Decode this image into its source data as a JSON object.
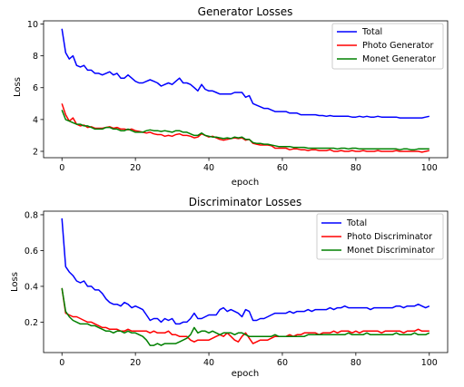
{
  "chart_data": [
    {
      "type": "line",
      "title": "Generator Losses",
      "xlabel": "epoch",
      "ylabel": "Loss",
      "xlim": [
        -5,
        105
      ],
      "ylim": [
        1.6,
        10.2
      ],
      "xticks": [
        0,
        20,
        40,
        60,
        80,
        100
      ],
      "yticks": [
        2,
        4,
        6,
        8,
        10
      ],
      "grid": false,
      "legend": "upper right",
      "series": [
        {
          "name": "Total",
          "color": "#0000ff",
          "values": [
            9.7,
            8.2,
            7.8,
            8.0,
            7.4,
            7.3,
            7.4,
            7.1,
            7.1,
            6.9,
            6.9,
            6.8,
            6.9,
            7.0,
            6.8,
            6.9,
            6.6,
            6.6,
            6.8,
            6.6,
            6.4,
            6.3,
            6.3,
            6.4,
            6.5,
            6.4,
            6.3,
            6.1,
            6.2,
            6.3,
            6.2,
            6.4,
            6.6,
            6.3,
            6.3,
            6.2,
            6.0,
            5.8,
            6.2,
            5.9,
            5.8,
            5.8,
            5.7,
            5.6,
            5.6,
            5.6,
            5.6,
            5.7,
            5.7,
            5.7,
            5.4,
            5.5,
            5.0,
            4.9,
            4.8,
            4.7,
            4.7,
            4.6,
            4.5,
            4.5,
            4.5,
            4.5,
            4.4,
            4.4,
            4.4,
            4.3,
            4.3,
            4.3,
            4.3,
            4.3,
            4.25,
            4.25,
            4.2,
            4.25,
            4.2,
            4.2,
            4.2,
            4.2,
            4.2,
            4.15,
            4.15,
            4.2,
            4.15,
            4.2,
            4.15,
            4.15,
            4.2,
            4.15,
            4.15,
            4.15,
            4.15,
            4.15,
            4.1,
            4.1,
            4.1,
            4.1,
            4.1,
            4.1,
            4.1,
            4.15,
            4.2
          ]
        },
        {
          "name": "Photo Generator",
          "color": "#ff0000",
          "values": [
            5.0,
            4.3,
            3.9,
            4.1,
            3.7,
            3.6,
            3.65,
            3.5,
            3.55,
            3.45,
            3.45,
            3.45,
            3.5,
            3.55,
            3.45,
            3.5,
            3.4,
            3.4,
            3.35,
            3.4,
            3.3,
            3.25,
            3.2,
            3.15,
            3.2,
            3.1,
            3.05,
            3.05,
            2.95,
            3.0,
            2.95,
            3.05,
            3.1,
            3.0,
            3.0,
            2.95,
            2.85,
            2.9,
            3.1,
            3.0,
            2.9,
            2.95,
            2.85,
            2.75,
            2.7,
            2.75,
            2.8,
            2.85,
            2.8,
            2.85,
            2.7,
            2.75,
            2.5,
            2.45,
            2.4,
            2.4,
            2.4,
            2.35,
            2.2,
            2.2,
            2.2,
            2.2,
            2.1,
            2.15,
            2.15,
            2.1,
            2.1,
            2.05,
            2.1,
            2.1,
            2.05,
            2.05,
            2.05,
            2.1,
            2.0,
            2.0,
            2.05,
            2.0,
            2.0,
            2.05,
            2.0,
            2.0,
            2.05,
            2.0,
            2.0,
            2.0,
            2.05,
            2.0,
            2.0,
            2.0,
            2.0,
            2.05,
            2.0,
            2.0,
            2.0,
            2.0,
            2.0,
            2.0,
            1.95,
            2.0,
            2.05
          ]
        },
        {
          "name": "Monet Generator",
          "color": "#008000",
          "values": [
            4.6,
            4.0,
            3.9,
            3.8,
            3.7,
            3.7,
            3.6,
            3.6,
            3.5,
            3.4,
            3.4,
            3.4,
            3.5,
            3.5,
            3.4,
            3.4,
            3.3,
            3.3,
            3.4,
            3.3,
            3.2,
            3.2,
            3.2,
            3.3,
            3.35,
            3.3,
            3.3,
            3.25,
            3.3,
            3.25,
            3.2,
            3.3,
            3.3,
            3.2,
            3.2,
            3.1,
            3.0,
            3.0,
            3.15,
            3.0,
            2.95,
            2.9,
            2.9,
            2.85,
            2.8,
            2.85,
            2.8,
            2.9,
            2.85,
            2.9,
            2.75,
            2.75,
            2.55,
            2.5,
            2.5,
            2.45,
            2.45,
            2.4,
            2.35,
            2.3,
            2.3,
            2.3,
            2.3,
            2.25,
            2.25,
            2.25,
            2.25,
            2.2,
            2.2,
            2.2,
            2.2,
            2.2,
            2.2,
            2.2,
            2.2,
            2.15,
            2.2,
            2.2,
            2.15,
            2.2,
            2.2,
            2.15,
            2.15,
            2.15,
            2.15,
            2.15,
            2.15,
            2.15,
            2.15,
            2.15,
            2.15,
            2.15,
            2.1,
            2.15,
            2.15,
            2.1,
            2.1,
            2.15,
            2.15,
            2.15,
            2.15
          ]
        }
      ]
    },
    {
      "type": "line",
      "title": "Discriminator Losses",
      "xlabel": "epoch",
      "ylabel": "Loss",
      "xlim": [
        -5,
        105
      ],
      "ylim": [
        0.03,
        0.82
      ],
      "xticks": [
        0,
        20,
        40,
        60,
        80,
        100
      ],
      "yticks": [
        0.2,
        0.4,
        0.6,
        0.8
      ],
      "grid": false,
      "legend": "upper right",
      "series": [
        {
          "name": "Total",
          "color": "#0000ff",
          "values": [
            0.78,
            0.51,
            0.48,
            0.46,
            0.43,
            0.42,
            0.43,
            0.4,
            0.4,
            0.38,
            0.38,
            0.36,
            0.33,
            0.31,
            0.3,
            0.3,
            0.29,
            0.31,
            0.3,
            0.28,
            0.29,
            0.28,
            0.27,
            0.24,
            0.21,
            0.22,
            0.22,
            0.2,
            0.22,
            0.21,
            0.22,
            0.19,
            0.19,
            0.2,
            0.2,
            0.22,
            0.25,
            0.22,
            0.22,
            0.23,
            0.24,
            0.24,
            0.24,
            0.27,
            0.28,
            0.26,
            0.27,
            0.26,
            0.25,
            0.23,
            0.27,
            0.26,
            0.21,
            0.21,
            0.22,
            0.22,
            0.23,
            0.24,
            0.25,
            0.25,
            0.25,
            0.25,
            0.26,
            0.25,
            0.26,
            0.26,
            0.26,
            0.27,
            0.26,
            0.27,
            0.27,
            0.27,
            0.27,
            0.28,
            0.27,
            0.28,
            0.28,
            0.29,
            0.28,
            0.28,
            0.28,
            0.28,
            0.28,
            0.28,
            0.27,
            0.28,
            0.28,
            0.28,
            0.28,
            0.28,
            0.28,
            0.29,
            0.29,
            0.28,
            0.29,
            0.29,
            0.29,
            0.3,
            0.29,
            0.28,
            0.29
          ]
        },
        {
          "name": "Photo Discriminator",
          "color": "#ff0000",
          "values": [
            0.39,
            0.25,
            0.24,
            0.23,
            0.23,
            0.22,
            0.21,
            0.2,
            0.2,
            0.19,
            0.18,
            0.17,
            0.17,
            0.16,
            0.16,
            0.16,
            0.15,
            0.15,
            0.16,
            0.15,
            0.15,
            0.15,
            0.15,
            0.15,
            0.14,
            0.15,
            0.14,
            0.14,
            0.14,
            0.15,
            0.13,
            0.13,
            0.12,
            0.12,
            0.12,
            0.1,
            0.09,
            0.1,
            0.1,
            0.1,
            0.1,
            0.11,
            0.12,
            0.13,
            0.12,
            0.14,
            0.12,
            0.1,
            0.09,
            0.12,
            0.14,
            0.11,
            0.08,
            0.09,
            0.1,
            0.1,
            0.1,
            0.11,
            0.12,
            0.12,
            0.12,
            0.12,
            0.13,
            0.12,
            0.13,
            0.13,
            0.14,
            0.14,
            0.14,
            0.14,
            0.13,
            0.14,
            0.14,
            0.14,
            0.15,
            0.14,
            0.15,
            0.15,
            0.15,
            0.14,
            0.15,
            0.14,
            0.15,
            0.15,
            0.15,
            0.15,
            0.15,
            0.14,
            0.15,
            0.15,
            0.15,
            0.15,
            0.15,
            0.14,
            0.15,
            0.15,
            0.15,
            0.16,
            0.15,
            0.15,
            0.15
          ]
        },
        {
          "name": "Monet Discriminator",
          "color": "#008000",
          "values": [
            0.39,
            0.26,
            0.23,
            0.21,
            0.2,
            0.19,
            0.19,
            0.19,
            0.18,
            0.18,
            0.17,
            0.16,
            0.15,
            0.15,
            0.14,
            0.15,
            0.15,
            0.14,
            0.15,
            0.14,
            0.14,
            0.13,
            0.12,
            0.1,
            0.07,
            0.07,
            0.08,
            0.07,
            0.08,
            0.08,
            0.08,
            0.08,
            0.09,
            0.1,
            0.11,
            0.13,
            0.17,
            0.14,
            0.15,
            0.15,
            0.14,
            0.15,
            0.14,
            0.13,
            0.14,
            0.14,
            0.14,
            0.13,
            0.14,
            0.14,
            0.13,
            0.12,
            0.12,
            0.12,
            0.12,
            0.12,
            0.12,
            0.12,
            0.13,
            0.12,
            0.12,
            0.12,
            0.12,
            0.12,
            0.12,
            0.12,
            0.12,
            0.13,
            0.13,
            0.13,
            0.13,
            0.13,
            0.13,
            0.13,
            0.13,
            0.13,
            0.13,
            0.13,
            0.14,
            0.13,
            0.13,
            0.13,
            0.13,
            0.14,
            0.13,
            0.13,
            0.13,
            0.13,
            0.13,
            0.13,
            0.13,
            0.14,
            0.13,
            0.13,
            0.13,
            0.13,
            0.14,
            0.13,
            0.13,
            0.13,
            0.14
          ]
        }
      ]
    }
  ]
}
